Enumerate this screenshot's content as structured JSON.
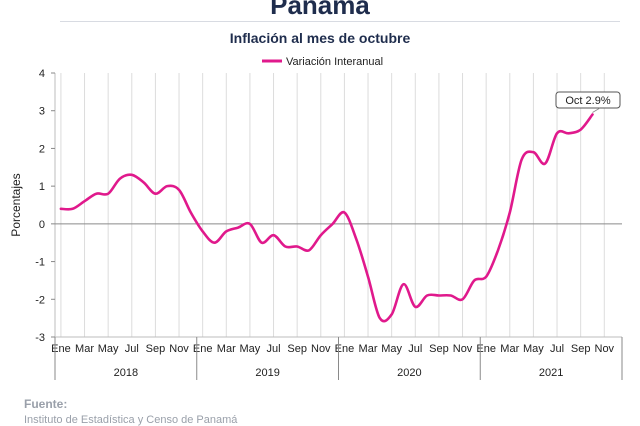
{
  "page": {
    "title": "Panamá",
    "subtitle": "Inflación al mes de octubre"
  },
  "footer": {
    "label": "Fuente:",
    "source": "Instituto de Estadística y Censo de Panamá"
  },
  "chart_data": {
    "type": "line",
    "ylabel": "Porcentajes",
    "ylim": [
      -3,
      4
    ],
    "yticks": [
      4,
      3,
      2,
      1,
      0,
      -1,
      -2,
      -3
    ],
    "grid": "vertical",
    "legend": {
      "position": "top",
      "entries": [
        "Variación Interanual"
      ]
    },
    "month_labels": [
      "Ene",
      "Mar",
      "May",
      "Jul",
      "Sep",
      "Nov"
    ],
    "years": [
      "2018",
      "2019",
      "2020",
      "2021"
    ],
    "annotation": {
      "text": "Oct 2.9%",
      "x": "2021-10",
      "y": 2.9
    },
    "series": [
      {
        "name": "Variación Interanual",
        "color": "#e0198c",
        "x": [
          "2018-01",
          "2018-02",
          "2018-03",
          "2018-04",
          "2018-05",
          "2018-06",
          "2018-07",
          "2018-08",
          "2018-09",
          "2018-10",
          "2018-11",
          "2018-12",
          "2019-01",
          "2019-02",
          "2019-03",
          "2019-04",
          "2019-05",
          "2019-06",
          "2019-07",
          "2019-08",
          "2019-09",
          "2019-10",
          "2019-11",
          "2019-12",
          "2020-01",
          "2020-02",
          "2020-03",
          "2020-04",
          "2020-05",
          "2020-06",
          "2020-07",
          "2020-08",
          "2020-09",
          "2020-10",
          "2020-11",
          "2020-12",
          "2021-01",
          "2021-02",
          "2021-03",
          "2021-04",
          "2021-05",
          "2021-06",
          "2021-07",
          "2021-08",
          "2021-09",
          "2021-10"
        ],
        "values": [
          0.4,
          0.4,
          0.6,
          0.8,
          0.8,
          1.2,
          1.3,
          1.1,
          0.8,
          1.0,
          0.9,
          0.3,
          -0.2,
          -0.5,
          -0.2,
          -0.1,
          0.0,
          -0.5,
          -0.3,
          -0.6,
          -0.6,
          -0.7,
          -0.3,
          0.0,
          0.3,
          -0.4,
          -1.4,
          -2.5,
          -2.4,
          -1.6,
          -2.2,
          -1.9,
          -1.9,
          -1.9,
          -2.0,
          -1.5,
          -1.4,
          -0.7,
          0.3,
          1.7,
          1.9,
          1.6,
          2.4,
          2.4,
          2.5,
          2.9
        ]
      }
    ]
  }
}
